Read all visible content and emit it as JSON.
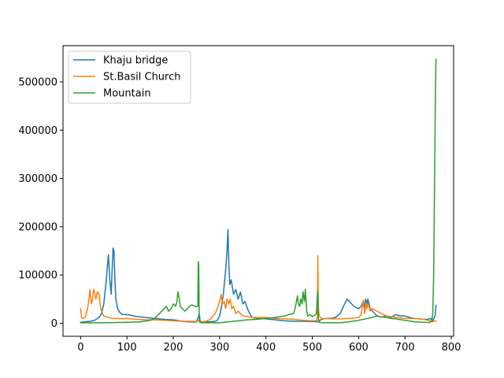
{
  "chart_data": {
    "type": "line",
    "title": "",
    "xlabel": "",
    "ylabel": "",
    "xlim": [
      -38,
      805
    ],
    "ylim": [
      -27000,
      575000
    ],
    "xticks": [
      0,
      100,
      200,
      300,
      400,
      500,
      600,
      700,
      800
    ],
    "yticks": [
      0,
      100000,
      200000,
      300000,
      400000,
      500000
    ],
    "grid": false,
    "legend_position": "top-left",
    "series": [
      {
        "name": "Khaju bridge",
        "color": "#1f77b4",
        "x": [
          0,
          10,
          20,
          30,
          40,
          45,
          50,
          55,
          58,
          60,
          63,
          66,
          68,
          70,
          72,
          74,
          76,
          80,
          85,
          90,
          100,
          110,
          120,
          140,
          160,
          180,
          200,
          220,
          230,
          240,
          250,
          255,
          256,
          258,
          260,
          270,
          280,
          290,
          295,
          300,
          305,
          308,
          310,
          313,
          316,
          318,
          320,
          322,
          325,
          330,
          335,
          340,
          345,
          350,
          355,
          360,
          365,
          370,
          380,
          400,
          420,
          440,
          460,
          480,
          500,
          510,
          512,
          520,
          530,
          540,
          550,
          560,
          565,
          570,
          575,
          580,
          590,
          600,
          605,
          610,
          612,
          615,
          618,
          620,
          625,
          630,
          640,
          650,
          660,
          670,
          680,
          690,
          700,
          710,
          720,
          730,
          740,
          750,
          755,
          760,
          765,
          767
        ],
        "y": [
          2000,
          3000,
          4000,
          6000,
          12000,
          20000,
          40000,
          85000,
          120000,
          142000,
          90000,
          60000,
          110000,
          156000,
          150000,
          90000,
          50000,
          30000,
          22000,
          18000,
          18000,
          16000,
          14000,
          12000,
          10000,
          8000,
          7000,
          4000,
          3000,
          2500,
          2500,
          15000,
          20000,
          5000,
          3000,
          3000,
          3000,
          4000,
          6000,
          15000,
          40000,
          60000,
          80000,
          110000,
          150000,
          194000,
          120000,
          80000,
          90000,
          60000,
          70000,
          50000,
          65000,
          40000,
          45000,
          30000,
          20000,
          12000,
          10000,
          9000,
          7000,
          5000,
          4000,
          4000,
          3500,
          3000,
          3000,
          8000,
          10000,
          10000,
          12000,
          20000,
          30000,
          40000,
          50000,
          45000,
          35000,
          30000,
          35000,
          45000,
          30000,
          50000,
          40000,
          50000,
          30000,
          25000,
          15000,
          13000,
          15000,
          12000,
          18000,
          15000,
          15000,
          12000,
          10000,
          9000,
          8000,
          8000,
          10000,
          5000,
          15000,
          37000
        ]
      },
      {
        "name": "St.Basil Church",
        "color": "#ff7f0e",
        "x": [
          0,
          2,
          5,
          10,
          15,
          18,
          20,
          23,
          26,
          28,
          30,
          33,
          36,
          40,
          42,
          45,
          50,
          60,
          70,
          80,
          90,
          100,
          110,
          120,
          140,
          160,
          180,
          200,
          220,
          240,
          250,
          255,
          256,
          258,
          260,
          270,
          280,
          290,
          295,
          300,
          303,
          306,
          310,
          313,
          316,
          320,
          323,
          326,
          330,
          335,
          340,
          350,
          360,
          370,
          380,
          400,
          420,
          440,
          460,
          480,
          500,
          510,
          511,
          512,
          513,
          515,
          520,
          540,
          560,
          580,
          600,
          603,
          606,
          608,
          610,
          613,
          616,
          618,
          620,
          625,
          630,
          640,
          650,
          660,
          680,
          700,
          720,
          740,
          750,
          760,
          765,
          767
        ],
        "y": [
          30000,
          12000,
          10000,
          12000,
          30000,
          50000,
          70000,
          40000,
          50000,
          70000,
          65000,
          50000,
          65000,
          60000,
          40000,
          25000,
          15000,
          12000,
          10000,
          10000,
          9000,
          10000,
          9000,
          8000,
          7000,
          7000,
          6000,
          5000,
          4000,
          4000,
          3500,
          5000,
          3000,
          3000,
          3000,
          4000,
          8000,
          20000,
          30000,
          45000,
          60000,
          40000,
          45000,
          30000,
          50000,
          40000,
          50000,
          30000,
          35000,
          20000,
          25000,
          15000,
          14000,
          12000,
          12000,
          12000,
          10000,
          9000,
          8000,
          6000,
          5000,
          5000,
          15000,
          140000,
          35000,
          15000,
          10000,
          9000,
          9000,
          10000,
          12000,
          15000,
          20000,
          35000,
          48000,
          20000,
          40000,
          30000,
          42000,
          25000,
          30000,
          25000,
          20000,
          15000,
          12000,
          10000,
          10000,
          8000,
          6000,
          3000,
          5000,
          4000
        ]
      },
      {
        "name": "Mountain",
        "color": "#2ca02c",
        "x": [
          0,
          50,
          100,
          130,
          150,
          160,
          165,
          170,
          175,
          180,
          185,
          190,
          195,
          200,
          205,
          208,
          210,
          213,
          215,
          220,
          225,
          230,
          235,
          240,
          245,
          250,
          253,
          254,
          255,
          256,
          257,
          260,
          280,
          300,
          320,
          340,
          360,
          380,
          400,
          420,
          440,
          450,
          460,
          465,
          468,
          470,
          473,
          475,
          478,
          480,
          483,
          485,
          488,
          490,
          495,
          500,
          505,
          509,
          511,
          512,
          513,
          514,
          515,
          520,
          540,
          560,
          580,
          600,
          620,
          640,
          650,
          660,
          670,
          680,
          700,
          720,
          740,
          750,
          755,
          758,
          760,
          762,
          764,
          766,
          767
        ],
        "y": [
          1000,
          1000,
          2000,
          3000,
          6000,
          10000,
          15000,
          20000,
          25000,
          30000,
          35000,
          25000,
          30000,
          40000,
          35000,
          45000,
          65000,
          50000,
          35000,
          30000,
          25000,
          30000,
          35000,
          38000,
          36000,
          34000,
          35000,
          128000,
          120000,
          10000,
          3000,
          1000,
          1000,
          1000,
          3000,
          5000,
          7000,
          8000,
          10000,
          12000,
          15000,
          18000,
          20000,
          40000,
          57000,
          40000,
          35000,
          50000,
          40000,
          65000,
          45000,
          70000,
          25000,
          15000,
          18000,
          14000,
          16000,
          20000,
          60000,
          68000,
          12000,
          5000,
          2000,
          1000,
          1000,
          1000,
          3000,
          6000,
          10000,
          15000,
          13000,
          12000,
          10000,
          9000,
          6000,
          3000,
          2000,
          1500,
          2000,
          5000,
          20000,
          100000,
          300000,
          500000,
          547000
        ]
      }
    ]
  }
}
